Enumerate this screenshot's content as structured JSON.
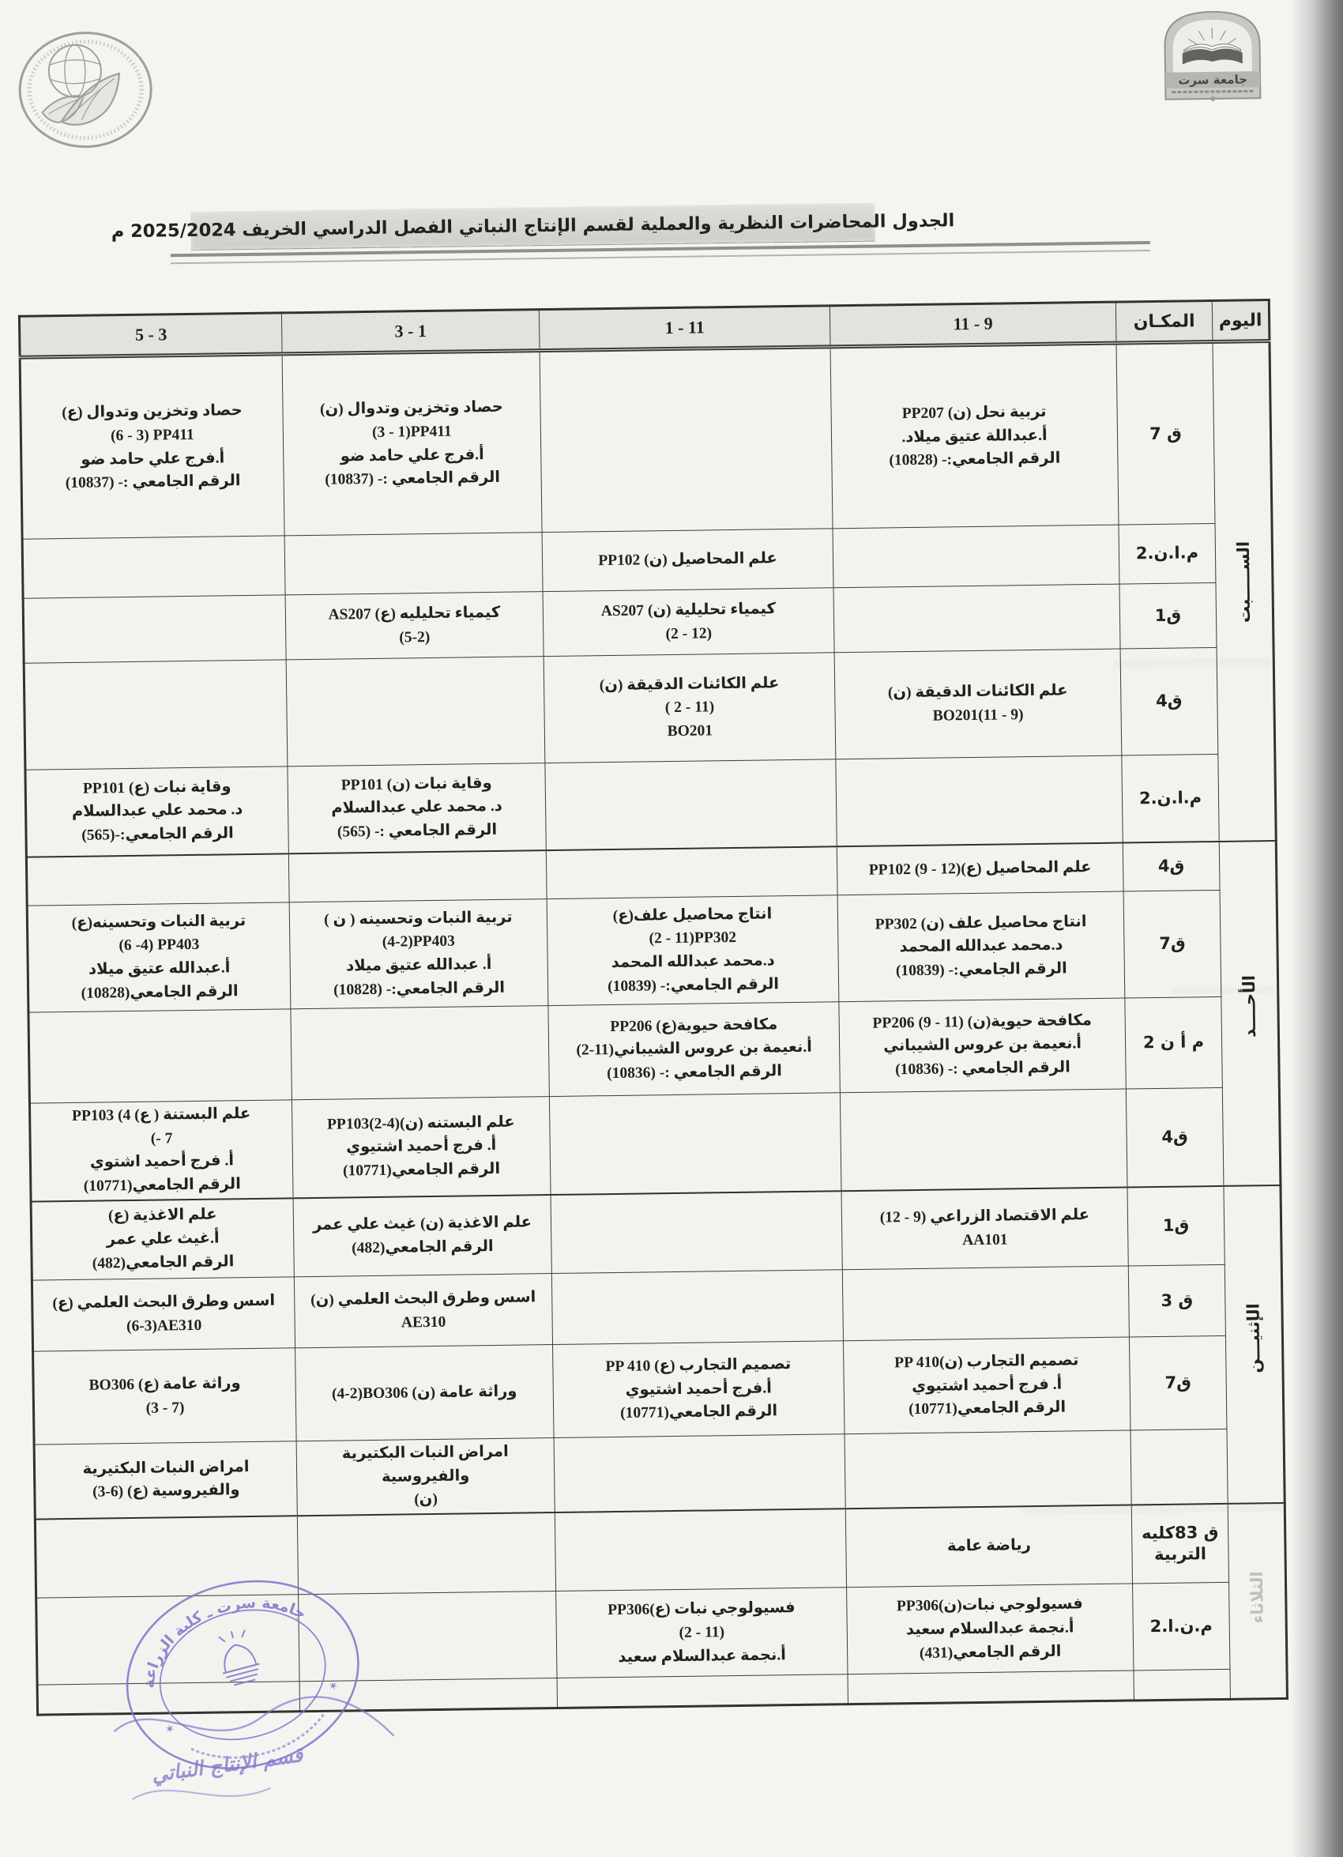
{
  "header": {
    "title": "الجدول المحاضرات النظرية والعملية  لقسم الإنتاج النباتي الفصل الدراسي الخريف   2025/2024 م"
  },
  "logos": {
    "left_emblem": "faculty-of-agriculture-seal",
    "right_emblem": "sirte-university-logo",
    "right_caption": "جامعة سرت"
  },
  "table": {
    "headers": {
      "day": "اليوم",
      "place": "المكـان",
      "h9": "9 - 11",
      "h11": "11 - 1",
      "h1": "1 - 3",
      "h3": "3 - 5"
    },
    "days": [
      {
        "label": "الســـــبت",
        "rows": 5
      },
      {
        "label": "الأحــــد",
        "rows": 4
      },
      {
        "label": "الإثنيـــن",
        "rows": 4
      },
      {
        "label": "الثلاثاء",
        "rows": 3
      }
    ],
    "rows": [
      {
        "place": "ق 7",
        "c9": "تربية نحل (ن)  PP207\nأ.عبداللة عتيق ميلاد.\nالرقم الجامعي:- (10828)",
        "c11": "",
        "c1": "حصاد وتخزين وتدوال (ن)\n‎(3 - 1)PP411\nأ.فرج علي حامد ضو\nالرقم الجامعي :- (10837)",
        "c3": "حصاد وتخزين وتدوال  (ع)\n‎(6 - 3) PP411\nأ.فرج علي حامد ضو\nالرقم الجامعي :- (10837)"
      },
      {
        "place": "م.ا.ن.2",
        "c9": "",
        "c11": "علم المحاصيل (ن) PP102",
        "c1": "",
        "c3": ""
      },
      {
        "place": "ق1",
        "c9": "",
        "c11": "كيمياء تحليلية (ن) AS207\n‎(2 - 12)",
        "c1": "كيمياء تحليليه (ع) AS207\n‎(5-2)",
        "c3": ""
      },
      {
        "place": "ق4",
        "c9": "علم الكائنات الدقيقة (ن)\n‎BO201(11 - 9)",
        "c11": "علم الكائنات الدقيقة (ن)\n‎( 2 - 11)\nBO201",
        "c1": "",
        "c3": ""
      },
      {
        "place": "م.ا.ن.2",
        "c9": "",
        "c11": "",
        "c1": "وقاية نبات (ن) PP101\nد. محمد علي عبدالسلام\nالرقم الجامعي :- (565)",
        "c3": "وقاية نبات (ع) PP101\nد. محمد علي عبدالسلام\nالرقم الجامعي:-(565)"
      },
      {
        "place": "ق4",
        "c9": "علم المحاصيل (ع)PP102 (9 - 12)",
        "c11": "",
        "c1": "",
        "c3": ""
      },
      {
        "place": "ق7",
        "c9": "انتاج محاصيل علف (ن) PP302\nد.محمد عبدالله المحمد\nالرقم الجامعي:- (10839)",
        "c11": "انتاج محاصيل علف(ع)\n‎(2 - 11)PP302\nد.محمد عبدالله المحمد\nالرقم الجامعي:- (10839)",
        "c1": "تربية النبات وتحسينه ( ن )\n‎(4-2)PP403\nأ.  عبدالله عتيق ميلاد\nالرقم الجامعي:- (10828)",
        "c3": "تربية النبات وتحسينه(ع)\n‎(6 -4) PP403\nأ.عبدالله عتيق ميلاد\nالرقم الجامعي(10828)"
      },
      {
        "place": "م أ ن 2",
        "c9": "مكافحة حيوية(ن) PP206 (9 - 11)\nأ.نعيمة بن عروس الشيباني\nالرقم الجامعي :- (10836)",
        "c11": "مكافحة حيوية(ع) PP206\nأ.نعيمة بن عروس الشيباني‎(2-11)\nالرقم الجامعي :- (10836)",
        "c1": "",
        "c3": ""
      },
      {
        "place": "ق4",
        "c9": "",
        "c11": "",
        "c1": "علم البستنه (ن)PP103‎(2-4)\nأ.  فرج أحميد اشتيوي\nالرقم الجامعي(10771)",
        "c3": "علم البستنة ( ع) PP103 (4\n‎- 7)\nأ.  فرج أحميد اشتوي\nالرقم الجامعي(10771)"
      },
      {
        "place": "ق1",
        "c9": "علم الاقتصاد الزراعي (9 - 12)\nAA101",
        "c11": "",
        "c1": "علم الاغذية (ن) غيث علي عمر\nالرقم الجامعي(482)",
        "c3": "علم الاغذية (ع)\nأ.غيث علي عمر\nالرقم الجامعي(482)"
      },
      {
        "place": "ق 3",
        "c9": "",
        "c11": "",
        "c1": "اسس وطرق البحث العلمي (ن)\nAE310",
        "c3": "اسس وطرق البحث العلمي (ع)\n‎(6-3)AE310"
      },
      {
        "place": "ق7",
        "c9": "تصميم التجارب (ن)PP 410\nأ.  فرج أحميد اشتيوي\nالرقم الجامعي(10771)",
        "c11": "تصميم التجارب (ع) PP 410\nأ.فرج أحميد اشتيوي\nالرقم الجامعي(10771)",
        "c1": "وراثة عامة (ن) ‎(4-2)BO306",
        "c3": "وراثة عامة (ع) BO306\n‎(3 - 7)"
      },
      {
        "place": "",
        "c9": "",
        "c11": "",
        "c1": "امراض النبات البكتيرية والفيروسية\n(ن)",
        "c3": "امراض النبات البكتيرية\nوالفيروسية (ع) ‎(3-6)"
      },
      {
        "place": "ق 83كليه\nالتربية",
        "c9": "رياضة عامة",
        "c11": "",
        "c1": "",
        "c3": ""
      },
      {
        "place": "م.ن.ا.2",
        "c9": "فسيولوجي نبات(ن)PP306\nأ.نجمة عبدالسلام سعيد\nالرقم الجامعي(431)",
        "c11": "فسيولوجي نبات (ع)PP306\n‎(2 - 11)\nأ.نجمة عبدالسلام سعيد",
        "c1": "",
        "c3": ""
      },
      {
        "place": "",
        "c9": "",
        "c11": "",
        "c1": "",
        "c3": ""
      }
    ]
  },
  "stamp": {
    "ring_text": "جامعة سرت ـ كلية الزراعة",
    "handwritten_note": "قسم الإنتاج النباتي"
  },
  "colors": {
    "ink": "#23211f",
    "paper": "#f5f4f1",
    "title_band": "#d8d7d3",
    "stamp_purple": "#8074cc",
    "scan_edge": "#6a6a6a"
  }
}
